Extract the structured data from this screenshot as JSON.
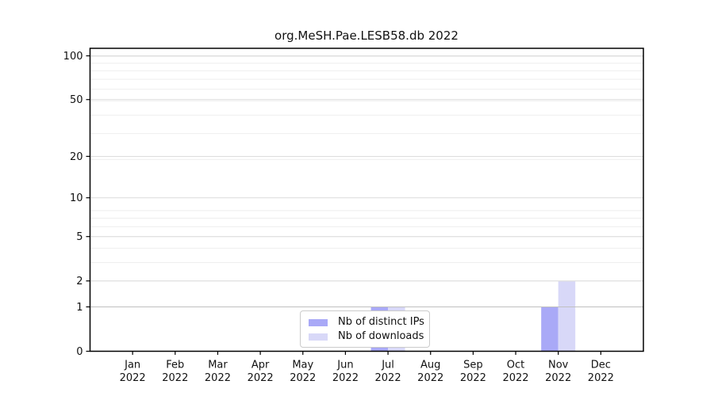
{
  "figure": {
    "background": "#ffffff",
    "axis_color": "#000000"
  },
  "chart_data": {
    "type": "bar",
    "title": "org.MeSH.Pae.LESB58.db 2022",
    "categories": [
      "Jan 2022",
      "Feb 2022",
      "Mar 2022",
      "Apr 2022",
      "May 2022",
      "Jun 2022",
      "Jul 2022",
      "Aug 2022",
      "Sep 2022",
      "Oct 2022",
      "Nov 2022",
      "Dec 2022"
    ],
    "series": [
      {
        "name": "Nb of distinct IPs",
        "color": "#a9a9f7",
        "values": [
          0,
          0,
          0,
          0,
          0,
          0,
          1,
          0,
          0,
          0,
          1,
          0
        ]
      },
      {
        "name": "Nb of downloads",
        "color": "#d8d8f8",
        "values": [
          0,
          0,
          0,
          0,
          0,
          0,
          1,
          0,
          0,
          0,
          2,
          0
        ]
      }
    ],
    "xlabel": "",
    "ylabel": "",
    "yscale": "log1p",
    "yticks": [
      0,
      1,
      2,
      5,
      10,
      20,
      50,
      100
    ],
    "ylim": [
      0,
      112.6
    ],
    "grid": true,
    "grid_major_color": "#dcdcdc",
    "grid_minor_color": "#eeeeee",
    "grid_unit_color": "#c0c0c0",
    "legend_position": "lower center"
  }
}
